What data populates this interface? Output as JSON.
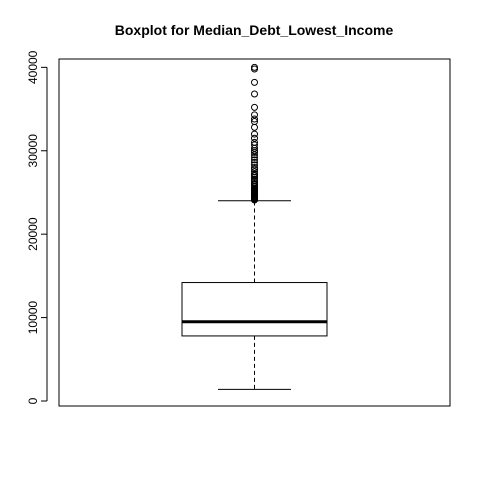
{
  "chart_data": {
    "type": "boxplot",
    "title": "Boxplot for  Median_Debt_Lowest_Income",
    "xlabel": "",
    "ylabel": "",
    "ylim": [
      -600,
      41000
    ],
    "y_ticks": [
      0,
      10000,
      20000,
      30000,
      40000
    ],
    "y_tick_labels": [
      "0",
      "10000",
      "20000",
      "30000",
      "40000"
    ],
    "grid": false,
    "legend": "none",
    "box": {
      "whisker_low": 1400,
      "q1": 7800,
      "median": 9500,
      "q3": 14200,
      "whisker_high": 24000
    },
    "outliers": [
      24100,
      24200,
      24300,
      24400,
      24500,
      24600,
      24700,
      24800,
      24900,
      25000,
      25100,
      25200,
      25300,
      25400,
      25500,
      25700,
      25900,
      26000,
      26200,
      26400,
      26600,
      26800,
      27000,
      27200,
      27500,
      27800,
      28000,
      28300,
      28600,
      28900,
      29200,
      29500,
      29800,
      30000,
      30300,
      30700,
      31000,
      31500,
      32000,
      32800,
      33500,
      33800,
      34300,
      35200,
      36800,
      38200,
      39800,
      40000
    ],
    "colors": {
      "stroke": "#000000",
      "background": "#ffffff"
    }
  }
}
